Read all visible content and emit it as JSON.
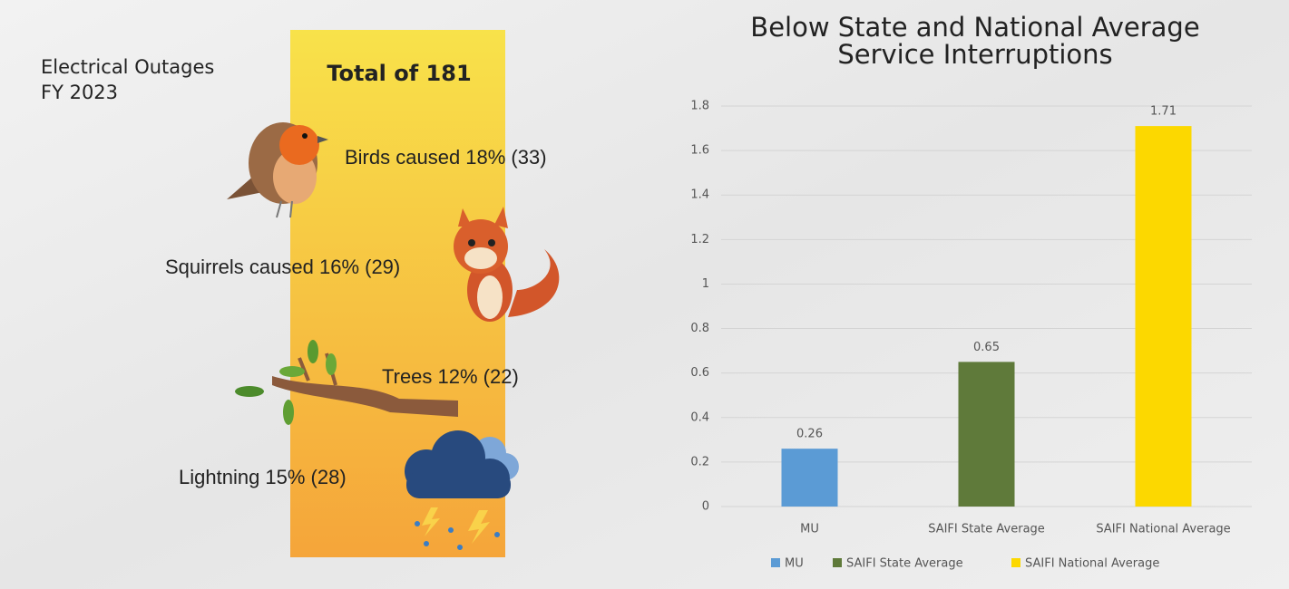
{
  "infographic": {
    "title_lines": [
      "Electrical Outages",
      "FY 2023"
    ],
    "total": "Total of 181",
    "causes": [
      "Birds caused 18% (33)",
      "Squirrels caused 16% (29)",
      "Trees 12% (22)",
      "Lightning 15% (28)"
    ]
  },
  "chart_data": {
    "type": "bar",
    "title_lines": [
      "Below State and National Average",
      "Service Interruptions"
    ],
    "categories": [
      "MU",
      "SAIFI State Average",
      "SAIFI National Average"
    ],
    "values": [
      0.26,
      0.65,
      1.71
    ],
    "colors": [
      "#5b9bd5",
      "#5f7a3a",
      "#fcd800"
    ],
    "ylim": [
      0,
      1.8
    ],
    "yticks": [
      0,
      0.2,
      0.4,
      0.6,
      0.8,
      1,
      1.2,
      1.4,
      1.6,
      1.8
    ],
    "grid": true,
    "legend": "bottom"
  }
}
